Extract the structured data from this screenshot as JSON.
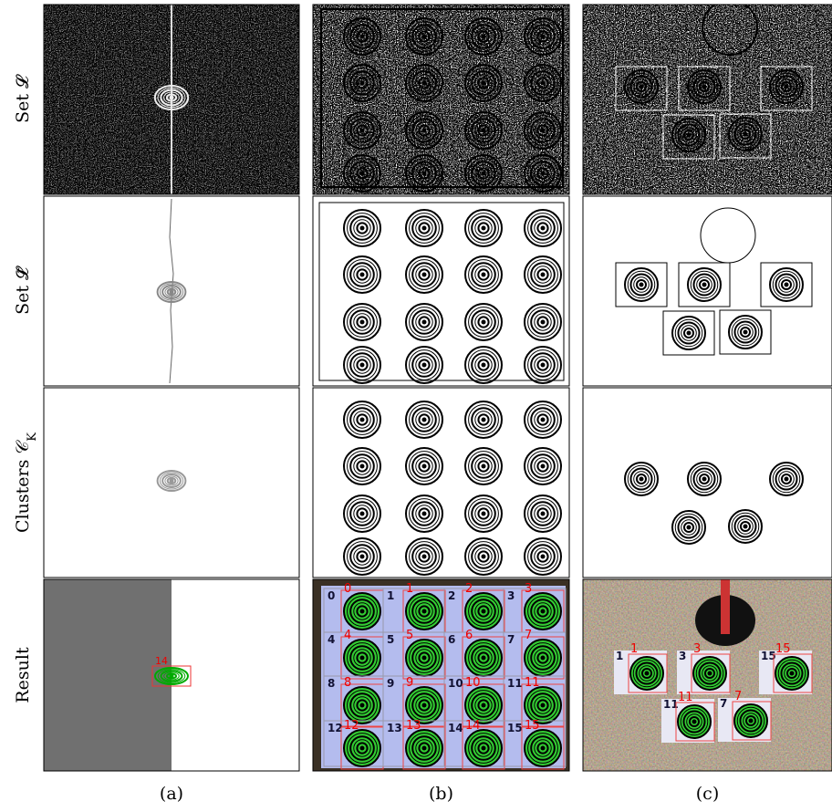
{
  "figure": {
    "row_labels": [
      {
        "text": "Set 𝓛"
      },
      {
        "text": "Set 𝓛̃"
      },
      {
        "text": "Clusters 𝒞",
        "subscript": "K"
      },
      {
        "text": "Result"
      }
    ],
    "column_labels": [
      "(a)",
      "(b)",
      "(c)"
    ],
    "panel_a_result_label": "14",
    "panel_b_result_cell_labels": [
      "0",
      "1",
      "2",
      "3",
      "4",
      "5",
      "6",
      "7",
      "8",
      "9",
      "10",
      "11",
      "12",
      "13",
      "14",
      "15"
    ],
    "panel_b_result_detection_labels": [
      "0",
      "1",
      "2",
      "3",
      "4",
      "5",
      "6",
      "7",
      "8",
      "9",
      "10",
      "11",
      "12",
      "13",
      "14",
      "15"
    ],
    "panel_c_result_cell_labels": [
      "1",
      "3",
      "15",
      "11",
      "7"
    ],
    "panel_c_result_detection_labels": [
      "1",
      "3",
      "15",
      "11",
      "7"
    ]
  }
}
